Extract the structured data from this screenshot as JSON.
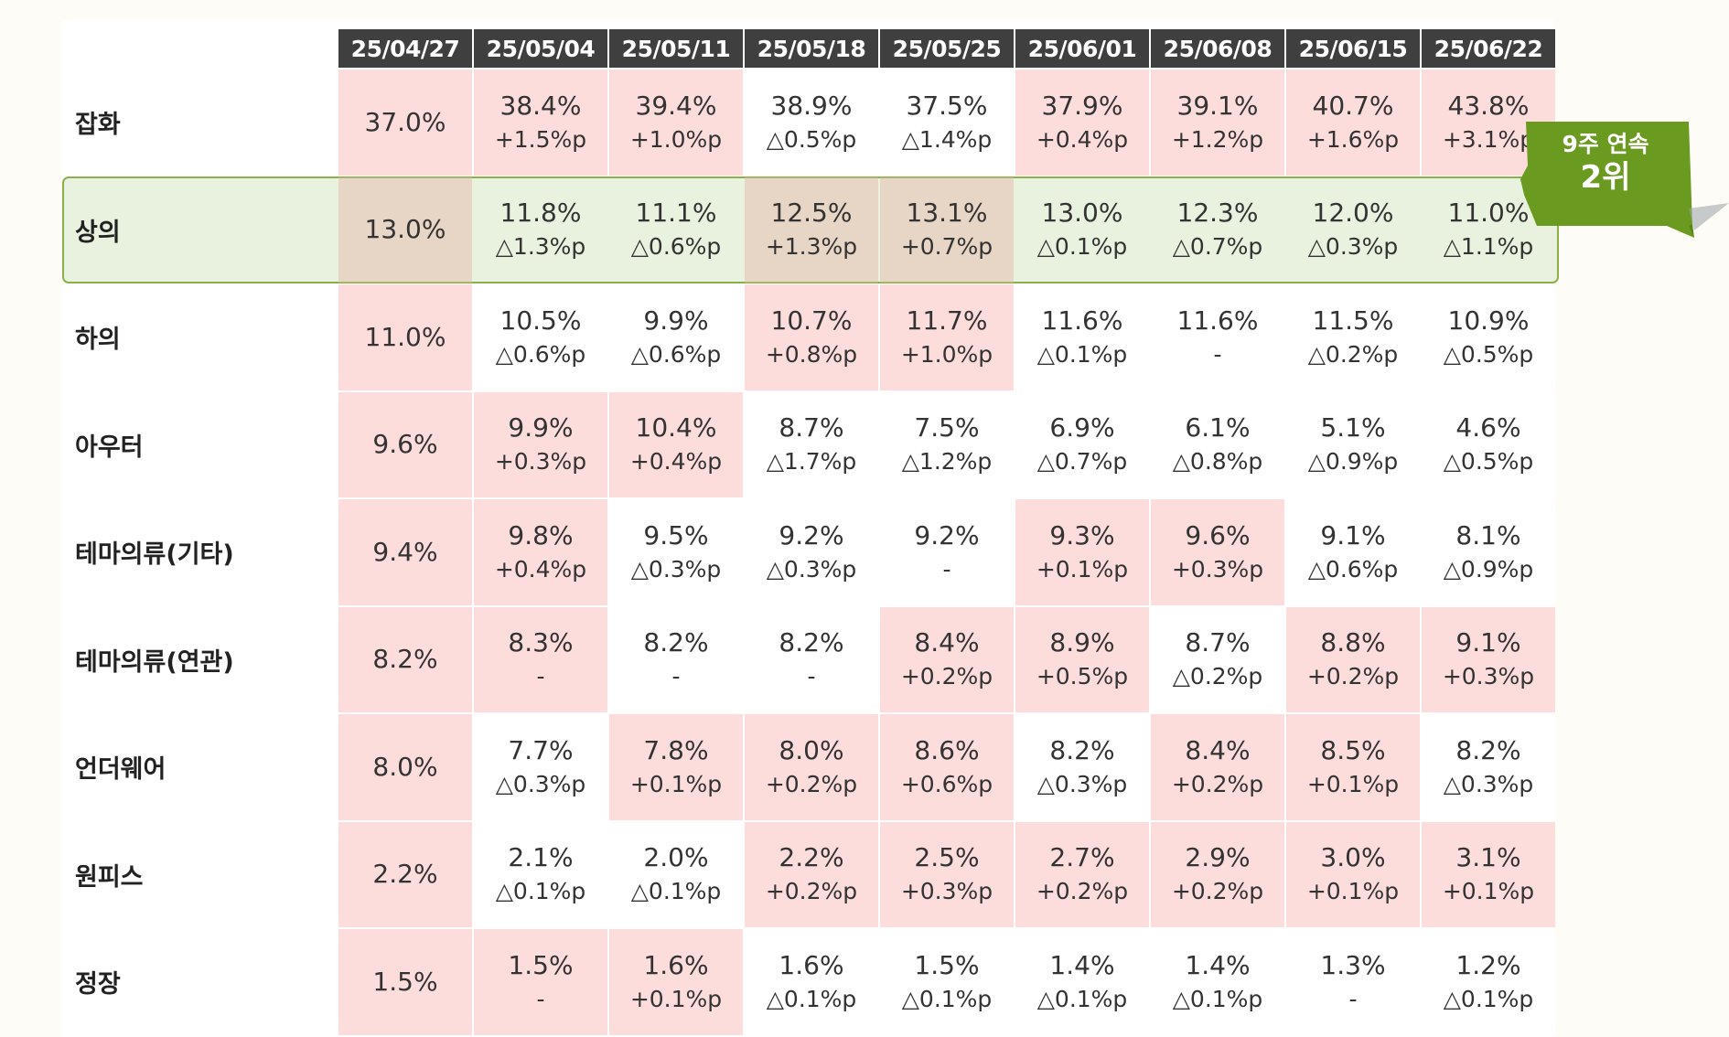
{
  "chart_data": {
    "type": "table",
    "columns": [
      "25/04/27",
      "25/05/04",
      "25/05/11",
      "25/05/18",
      "25/05/25",
      "25/06/01",
      "25/06/08",
      "25/06/15",
      "25/06/22"
    ],
    "rows": [
      {
        "label": "잡화",
        "cells": [
          {
            "v": "37.0%",
            "d": "",
            "hl": true
          },
          {
            "v": "38.4%",
            "d": "+1.5%p",
            "hl": true
          },
          {
            "v": "39.4%",
            "d": "+1.0%p",
            "hl": true
          },
          {
            "v": "38.9%",
            "d": "△0.5%p",
            "hl": false
          },
          {
            "v": "37.5%",
            "d": "△1.4%p",
            "hl": false
          },
          {
            "v": "37.9%",
            "d": "+0.4%p",
            "hl": true
          },
          {
            "v": "39.1%",
            "d": "+1.2%p",
            "hl": true
          },
          {
            "v": "40.7%",
            "d": "+1.6%p",
            "hl": true
          },
          {
            "v": "43.8%",
            "d": "+3.1%p",
            "hl": true
          }
        ]
      },
      {
        "label": "상의",
        "cells": [
          {
            "v": "13.0%",
            "d": "",
            "hl": true
          },
          {
            "v": "11.8%",
            "d": "△1.3%p",
            "hl": false
          },
          {
            "v": "11.1%",
            "d": "△0.6%p",
            "hl": false
          },
          {
            "v": "12.5%",
            "d": "+1.3%p",
            "hl": true
          },
          {
            "v": "13.1%",
            "d": "+0.7%p",
            "hl": true
          },
          {
            "v": "13.0%",
            "d": "△0.1%p",
            "hl": false
          },
          {
            "v": "12.3%",
            "d": "△0.7%p",
            "hl": false
          },
          {
            "v": "12.0%",
            "d": "△0.3%p",
            "hl": false
          },
          {
            "v": "11.0%",
            "d": "△1.1%p",
            "hl": false
          }
        ]
      },
      {
        "label": "하의",
        "cells": [
          {
            "v": "11.0%",
            "d": "",
            "hl": true
          },
          {
            "v": "10.5%",
            "d": "△0.6%p",
            "hl": false
          },
          {
            "v": "9.9%",
            "d": "△0.6%p",
            "hl": false
          },
          {
            "v": "10.7%",
            "d": "+0.8%p",
            "hl": true
          },
          {
            "v": "11.7%",
            "d": "+1.0%p",
            "hl": true
          },
          {
            "v": "11.6%",
            "d": "△0.1%p",
            "hl": false
          },
          {
            "v": "11.6%",
            "d": "-",
            "hl": false
          },
          {
            "v": "11.5%",
            "d": "△0.2%p",
            "hl": false
          },
          {
            "v": "10.9%",
            "d": "△0.5%p",
            "hl": false
          }
        ]
      },
      {
        "label": "아우터",
        "cells": [
          {
            "v": "9.6%",
            "d": "",
            "hl": true
          },
          {
            "v": "9.9%",
            "d": "+0.3%p",
            "hl": true
          },
          {
            "v": "10.4%",
            "d": "+0.4%p",
            "hl": true
          },
          {
            "v": "8.7%",
            "d": "△1.7%p",
            "hl": false
          },
          {
            "v": "7.5%",
            "d": "△1.2%p",
            "hl": false
          },
          {
            "v": "6.9%",
            "d": "△0.7%p",
            "hl": false
          },
          {
            "v": "6.1%",
            "d": "△0.8%p",
            "hl": false
          },
          {
            "v": "5.1%",
            "d": "△0.9%p",
            "hl": false
          },
          {
            "v": "4.6%",
            "d": "△0.5%p",
            "hl": false
          }
        ]
      },
      {
        "label": "테마의류(기타)",
        "cells": [
          {
            "v": "9.4%",
            "d": "",
            "hl": true
          },
          {
            "v": "9.8%",
            "d": "+0.4%p",
            "hl": true
          },
          {
            "v": "9.5%",
            "d": "△0.3%p",
            "hl": false
          },
          {
            "v": "9.2%",
            "d": "△0.3%p",
            "hl": false
          },
          {
            "v": "9.2%",
            "d": "-",
            "hl": false
          },
          {
            "v": "9.3%",
            "d": "+0.1%p",
            "hl": true
          },
          {
            "v": "9.6%",
            "d": "+0.3%p",
            "hl": true
          },
          {
            "v": "9.1%",
            "d": "△0.6%p",
            "hl": false
          },
          {
            "v": "8.1%",
            "d": "△0.9%p",
            "hl": false
          }
        ]
      },
      {
        "label": "테마의류(연관)",
        "cells": [
          {
            "v": "8.2%",
            "d": "",
            "hl": true
          },
          {
            "v": "8.3%",
            "d": "-",
            "hl": true
          },
          {
            "v": "8.2%",
            "d": "-",
            "hl": false
          },
          {
            "v": "8.2%",
            "d": "-",
            "hl": false
          },
          {
            "v": "8.4%",
            "d": "+0.2%p",
            "hl": true
          },
          {
            "v": "8.9%",
            "d": "+0.5%p",
            "hl": true
          },
          {
            "v": "8.7%",
            "d": "△0.2%p",
            "hl": false
          },
          {
            "v": "8.8%",
            "d": "+0.2%p",
            "hl": true
          },
          {
            "v": "9.1%",
            "d": "+0.3%p",
            "hl": true
          }
        ]
      },
      {
        "label": "언더웨어",
        "cells": [
          {
            "v": "8.0%",
            "d": "",
            "hl": true
          },
          {
            "v": "7.7%",
            "d": "△0.3%p",
            "hl": false
          },
          {
            "v": "7.8%",
            "d": "+0.1%p",
            "hl": true
          },
          {
            "v": "8.0%",
            "d": "+0.2%p",
            "hl": true
          },
          {
            "v": "8.6%",
            "d": "+0.6%p",
            "hl": true
          },
          {
            "v": "8.2%",
            "d": "△0.3%p",
            "hl": false
          },
          {
            "v": "8.4%",
            "d": "+0.2%p",
            "hl": true
          },
          {
            "v": "8.5%",
            "d": "+0.1%p",
            "hl": true
          },
          {
            "v": "8.2%",
            "d": "△0.3%p",
            "hl": false
          }
        ]
      },
      {
        "label": "원피스",
        "cells": [
          {
            "v": "2.2%",
            "d": "",
            "hl": true
          },
          {
            "v": "2.1%",
            "d": "△0.1%p",
            "hl": false
          },
          {
            "v": "2.0%",
            "d": "△0.1%p",
            "hl": false
          },
          {
            "v": "2.2%",
            "d": "+0.2%p",
            "hl": true
          },
          {
            "v": "2.5%",
            "d": "+0.3%p",
            "hl": true
          },
          {
            "v": "2.7%",
            "d": "+0.2%p",
            "hl": true
          },
          {
            "v": "2.9%",
            "d": "+0.2%p",
            "hl": true
          },
          {
            "v": "3.0%",
            "d": "+0.1%p",
            "hl": true
          },
          {
            "v": "3.1%",
            "d": "+0.1%p",
            "hl": true
          }
        ]
      },
      {
        "label": "정장",
        "cells": [
          {
            "v": "1.5%",
            "d": "",
            "hl": true
          },
          {
            "v": "1.5%",
            "d": "-",
            "hl": true
          },
          {
            "v": "1.6%",
            "d": "+0.1%p",
            "hl": true
          },
          {
            "v": "1.6%",
            "d": "△0.1%p",
            "hl": false
          },
          {
            "v": "1.5%",
            "d": "△0.1%p",
            "hl": false
          },
          {
            "v": "1.4%",
            "d": "△0.1%p",
            "hl": false
          },
          {
            "v": "1.4%",
            "d": "△0.1%p",
            "hl": false
          },
          {
            "v": "1.3%",
            "d": "-",
            "hl": false
          },
          {
            "v": "1.2%",
            "d": "△0.1%p",
            "hl": false
          }
        ]
      }
    ],
    "highlighted_row": "상의"
  },
  "colors": {
    "header_bg": "#3f3f3f",
    "highlight_cell": "#fddcdc",
    "row_highlight_fill": "#e2eed4",
    "row_highlight_border": "#8bb04a",
    "callout_green": "#6a9a1f"
  },
  "callout": {
    "line1": "9주 연속",
    "line2": "2위"
  }
}
